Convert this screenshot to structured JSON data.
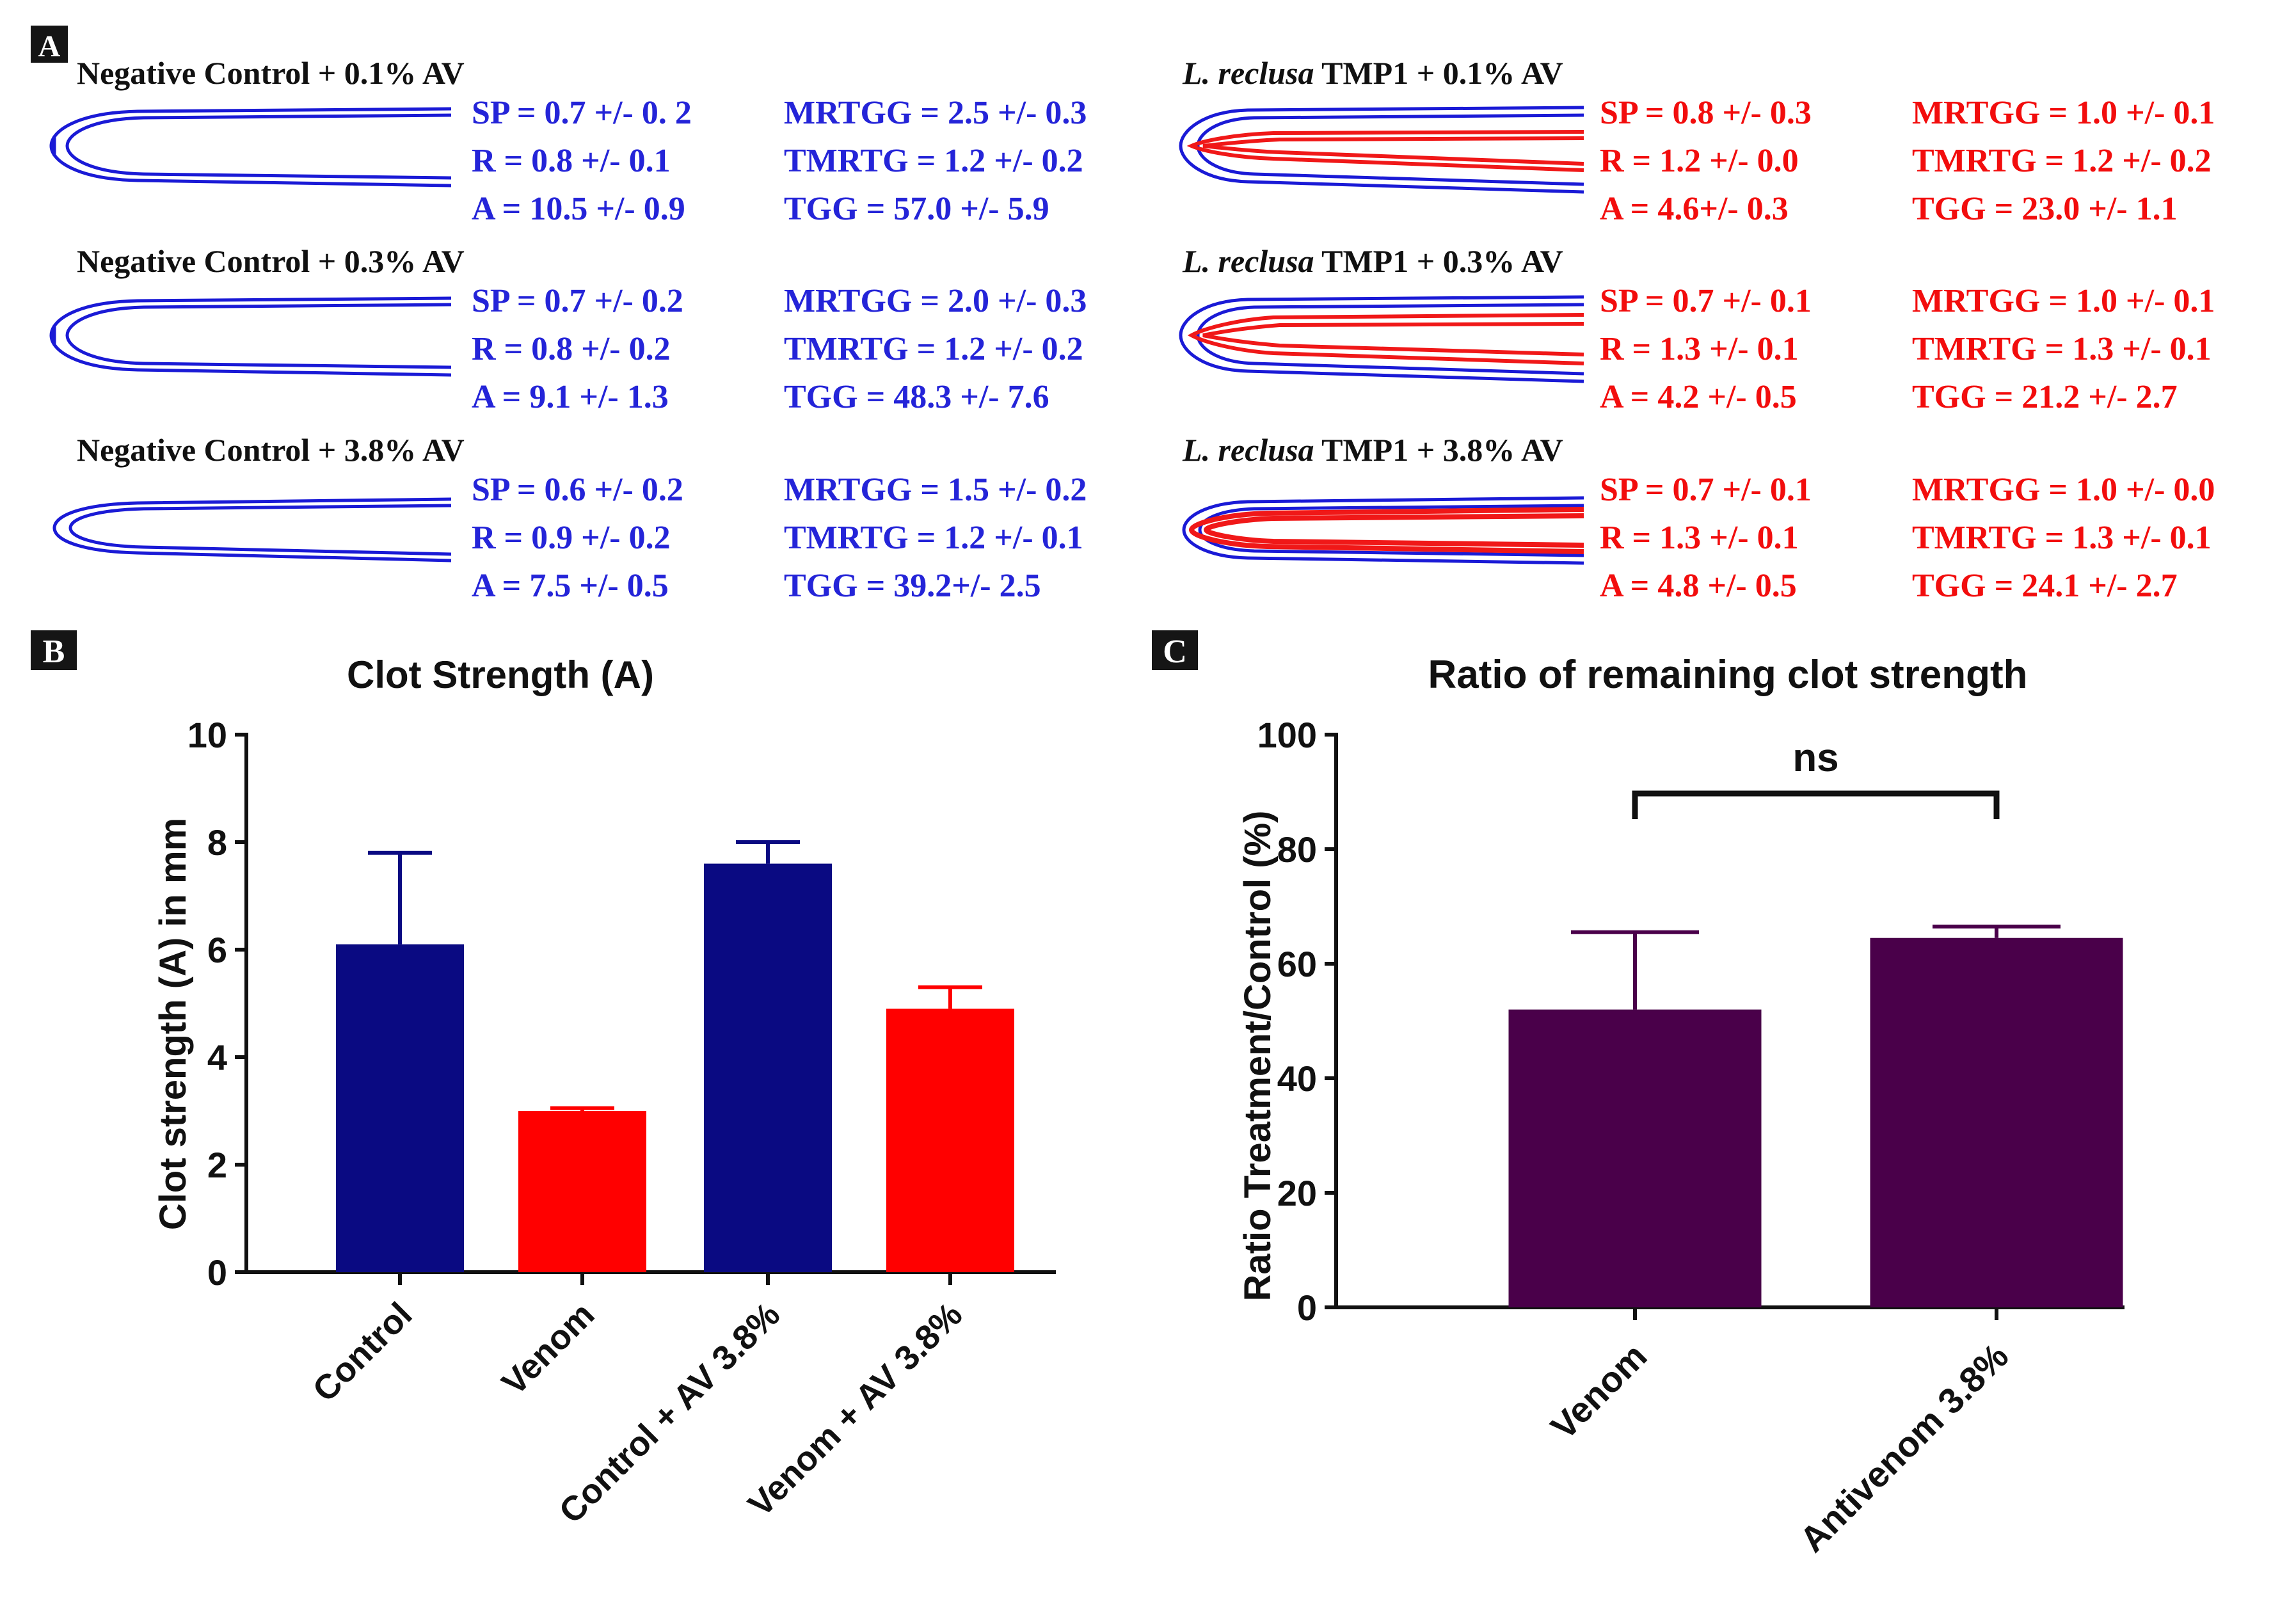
{
  "colors": {
    "blue_text": "#2424d8",
    "red_text": "#f20d0d",
    "trace_blue": "#1a1ad6",
    "trace_red": "#f01818",
    "bar_navy": "#0a0a82",
    "bar_red": "#ff0000",
    "bar_purple": "#4a004a",
    "panel_label_bg": "#151515"
  },
  "panel_a": {
    "label": "A",
    "blocks": [
      {
        "title": "Negative Control + 0.1% AV",
        "stats": [
          "SP = 0.7 +/- 0. 2",
          "R = 0.8 +/- 0.1",
          "A = 10.5 +/- 0.9"
        ],
        "stats2": [
          "MRTGG = 2.5 +/- 0.3",
          "TMRTG = 1.2 +/- 0.2",
          "TGG = 57.0 +/- 5.9"
        ]
      },
      {
        "title": "Negative Control + 0.3% AV",
        "stats": [
          "SP = 0.7 +/- 0.2",
          "R = 0.8 +/- 0.2",
          "A = 9.1 +/- 1.3"
        ],
        "stats2": [
          "MRTGG = 2.0 +/- 0.3",
          "TMRTG = 1.2 +/- 0.2",
          "TGG = 48.3 +/- 7.6"
        ]
      },
      {
        "title": "Negative Control + 3.8% AV",
        "stats": [
          "SP = 0.6 +/- 0.2",
          "R = 0.9 +/- 0.2",
          "A = 7.5 +/- 0.5"
        ],
        "stats2": [
          "MRTGG = 1.5 +/- 0.2",
          "TMRTG = 1.2 +/- 0.1",
          "TGG = 39.2+/- 2.5"
        ]
      },
      {
        "title_italic": "L. reclusa",
        "title": " TMP1 + 0.1% AV",
        "stats": [
          "SP = 0.8 +/- 0.3",
          "R = 1.2 +/- 0.0",
          "A = 4.6+/- 0.3"
        ],
        "stats2": [
          "MRTGG = 1.0 +/- 0.1",
          "TMRTG = 1.2 +/- 0.2",
          "TGG = 23.0 +/- 1.1"
        ]
      },
      {
        "title_italic": "L. reclusa",
        "title": " TMP1 + 0.3% AV",
        "stats": [
          "SP = 0.7 +/- 0.1",
          "R = 1.3 +/- 0.1",
          "A = 4.2 +/- 0.5"
        ],
        "stats2": [
          "MRTGG = 1.0 +/- 0.1",
          "TMRTG = 1.3 +/- 0.1",
          "TGG = 21.2 +/- 2.7"
        ]
      },
      {
        "title_italic": "L. reclusa",
        "title": " TMP1 + 3.8% AV",
        "stats": [
          "SP = 0.7 +/- 0.1",
          "R = 1.3 +/- 0.1",
          "A = 4.8 +/- 0.5"
        ],
        "stats2": [
          "MRTGG = 1.0 +/- 0.0",
          "TMRTG = 1.3 +/- 0.1",
          "TGG = 24.1 +/- 2.7"
        ]
      }
    ]
  },
  "chart_data": [
    {
      "panel": "B",
      "type": "bar",
      "title": "Clot Strength (A)",
      "xlabel": "",
      "ylabel": "Clot strength (A) in mm",
      "ylim": [
        0,
        10
      ],
      "yticks": [
        "0",
        "2",
        "4",
        "6",
        "8",
        "10"
      ],
      "categories": [
        "Control",
        "Venom",
        "Control + AV 3.8%",
        "Venom + AV 3.8%"
      ],
      "values": [
        6.1,
        3.0,
        7.6,
        4.9
      ],
      "errors": [
        1.7,
        0.05,
        0.4,
        0.4
      ],
      "bar_colors": [
        "#0a0a82",
        "#ff0000",
        "#0a0a82",
        "#ff0000"
      ]
    },
    {
      "panel": "C",
      "type": "bar",
      "title": "Ratio of remaining clot strength",
      "xlabel": "",
      "ylabel": "Ratio Treatment/Control (%)",
      "ylim": [
        0,
        100
      ],
      "yticks": [
        "0",
        "20",
        "40",
        "60",
        "80",
        "100"
      ],
      "categories": [
        "Venom",
        "Antivenom 3.8%"
      ],
      "values": [
        52,
        64.5
      ],
      "errors": [
        13.5,
        2
      ],
      "bar_colors": [
        "#4a004a",
        "#4a004a"
      ],
      "annotation": "ns"
    }
  ]
}
